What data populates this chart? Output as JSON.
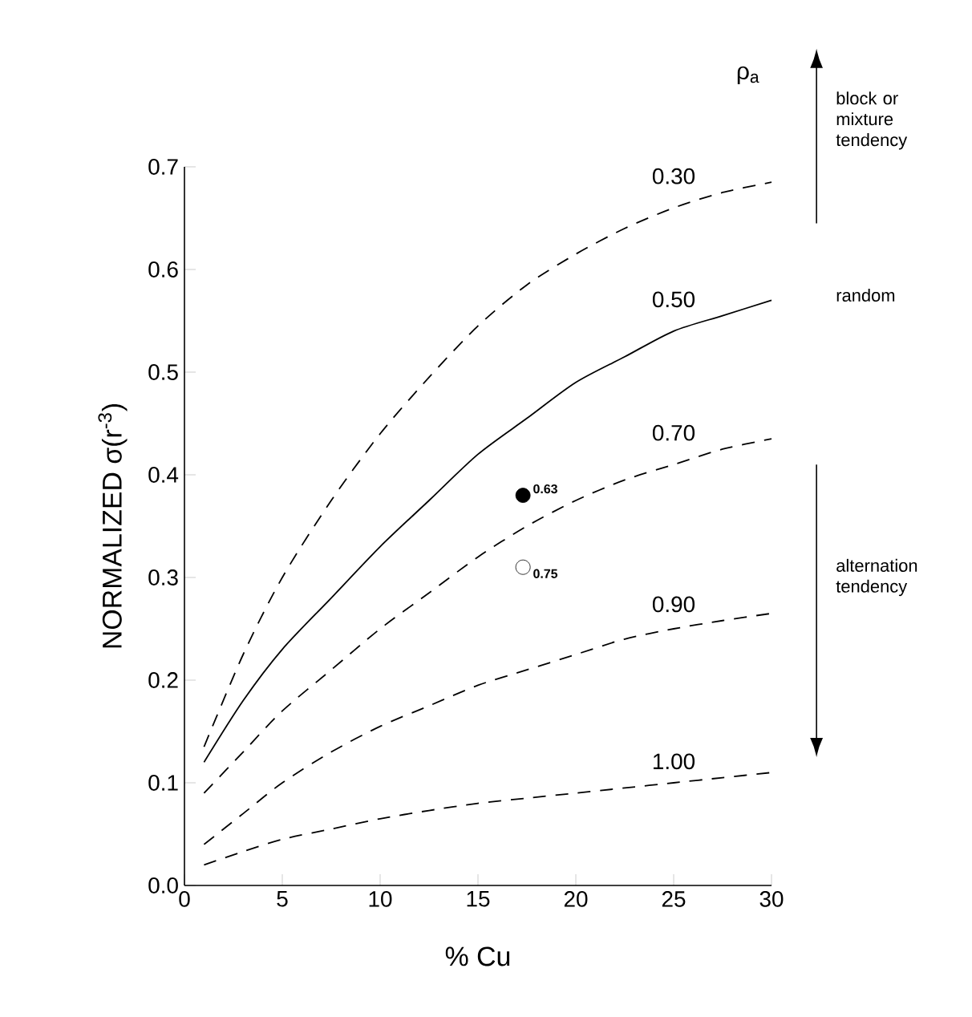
{
  "chart_data": {
    "type": "line",
    "xlabel": "% Cu",
    "ylabel": "NORMALIZED  σ(r$^{-3}$)",
    "legend_title": "ρ$_{a}$",
    "xlim": [
      0,
      30
    ],
    "ylim": [
      0,
      0.7
    ],
    "xticks": [
      0,
      5,
      10,
      15,
      20,
      25,
      30
    ],
    "yticks": [
      {
        "value": 0,
        "label": "0.0"
      },
      0.1,
      0.2,
      0.3,
      0.4,
      0.5,
      0.6,
      0.7
    ],
    "series": [
      {
        "name": "0.30",
        "line_style": "dashed",
        "color": "#000000",
        "x": [
          1,
          3,
          5,
          7.5,
          10,
          12.5,
          15,
          17.5,
          20,
          22.5,
          25,
          27.5,
          30
        ],
        "values": [
          0.135,
          0.225,
          0.3,
          0.375,
          0.44,
          0.495,
          0.545,
          0.585,
          0.615,
          0.64,
          0.66,
          0.675,
          0.685
        ]
      },
      {
        "name": "0.50",
        "line_style": "solid",
        "color": "#000000",
        "x": [
          1,
          3,
          5,
          7.5,
          10,
          12.5,
          15,
          17.5,
          20,
          22.5,
          25,
          27.5,
          30
        ],
        "values": [
          0.12,
          0.18,
          0.23,
          0.28,
          0.33,
          0.375,
          0.42,
          0.455,
          0.49,
          0.515,
          0.54,
          0.555,
          0.57
        ]
      },
      {
        "name": "0.70",
        "line_style": "dashed",
        "color": "#000000",
        "x": [
          1,
          3,
          5,
          7.5,
          10,
          12.5,
          15,
          17.5,
          20,
          22.5,
          25,
          27.5,
          30
        ],
        "values": [
          0.09,
          0.13,
          0.17,
          0.21,
          0.25,
          0.285,
          0.32,
          0.35,
          0.375,
          0.395,
          0.41,
          0.425,
          0.435
        ]
      },
      {
        "name": "0.90",
        "line_style": "dashed",
        "color": "#000000",
        "x": [
          1,
          3,
          5,
          7.5,
          10,
          12.5,
          15,
          17.5,
          20,
          22.5,
          25,
          27.5,
          30
        ],
        "values": [
          0.04,
          0.07,
          0.1,
          0.13,
          0.155,
          0.175,
          0.195,
          0.21,
          0.225,
          0.24,
          0.25,
          0.258,
          0.265
        ]
      },
      {
        "name": "1.00",
        "line_style": "dashed",
        "color": "#000000",
        "x": [
          1,
          3,
          5,
          7.5,
          10,
          12.5,
          15,
          17.5,
          20,
          22.5,
          25,
          27.5,
          30
        ],
        "values": [
          0.02,
          0.033,
          0.045,
          0.055,
          0.065,
          0.073,
          0.08,
          0.085,
          0.09,
          0.095,
          0.1,
          0.105,
          0.11
        ]
      },
      {
        "type": "scatter",
        "marker": "circle",
        "color": "#000000",
        "colors": [
          "#000000",
          "#ffffff"
        ],
        "x": [
          17.3,
          17.3
        ],
        "values": [
          0.38,
          0.31
        ]
      }
    ],
    "annotations": [
      "block or mixture tendency",
      "random",
      "alternation tendency",
      {
        "text": "0.63",
        "x": 17.3,
        "y": 0.38
      },
      {
        "text": "0.75",
        "x": 17.3,
        "y": 0.31
      }
    ]
  }
}
